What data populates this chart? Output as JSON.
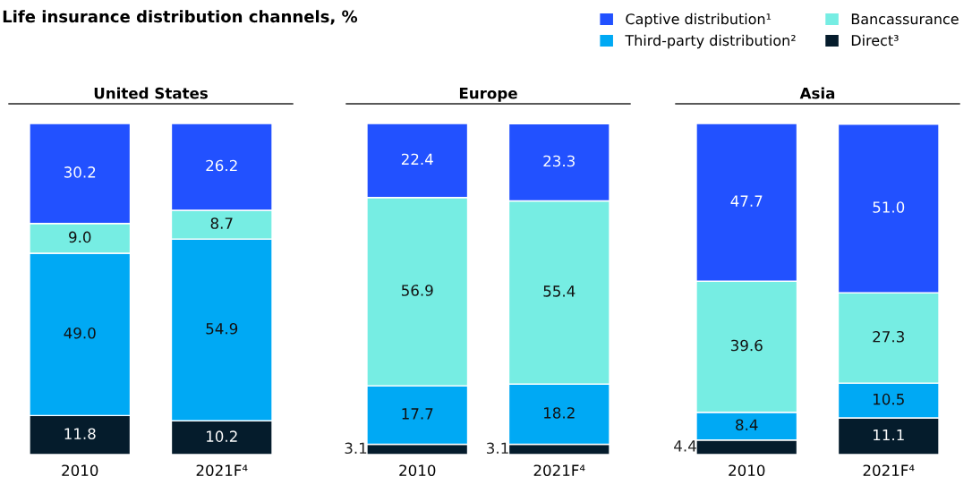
{
  "chart_data": [
    {
      "type": "bar",
      "stacked": true,
      "title": "United States",
      "annotations": [
        "Life insurance distribution channels, %"
      ],
      "legend": "top right",
      "data_labels": true,
      "categories": [
        "2010",
        "2021F⁴"
      ],
      "series": [
        {
          "name": "Direct³",
          "color": "#051c2c",
          "values": [
            11.8,
            10.2
          ]
        },
        {
          "name": "Third-party distribution²",
          "color": "#00a9f4",
          "values": [
            49.0,
            54.9
          ],
          "value_labels": [
            "49.0",
            "54.9"
          ]
        },
        {
          "name": "Bancassurance",
          "color": "#76ede3",
          "values": [
            9.0,
            8.7
          ],
          "value_labels": [
            "9.0",
            "8.7"
          ]
        },
        {
          "name": "Captive distribution¹",
          "color": "#2251ff",
          "values": [
            30.2,
            26.2
          ]
        }
      ]
    },
    {
      "type": "bar",
      "stacked": true,
      "title": "Europe",
      "data_labels": true,
      "categories": [
        "2010",
        "2021F⁴"
      ],
      "series": [
        {
          "color": "#051c2c",
          "values": [
            3.1,
            3.1
          ]
        },
        {
          "color": "#00a9f4",
          "values": [
            17.7,
            18.2
          ]
        },
        {
          "color": "#76ede3",
          "values": [
            56.9,
            55.4
          ]
        },
        {
          "color": "#2251ff",
          "values": [
            22.4,
            23.3
          ]
        }
      ]
    },
    {
      "type": "bar",
      "stacked": true,
      "title": "Asia",
      "data_labels": true,
      "categories": [
        "2010",
        "2021F⁴"
      ],
      "series": [
        {
          "color": "#051c2c",
          "values": [
            4.4,
            11.1
          ]
        },
        {
          "color": "#00a9f4",
          "values": [
            8.4,
            10.5
          ]
        },
        {
          "color": "#76ede3",
          "values": [
            39.6,
            27.3
          ]
        },
        {
          "color": "#2251ff",
          "values": [
            47.7,
            51.0
          ],
          "value_labels": [
            "47.7",
            "51.0"
          ]
        }
      ]
    }
  ]
}
